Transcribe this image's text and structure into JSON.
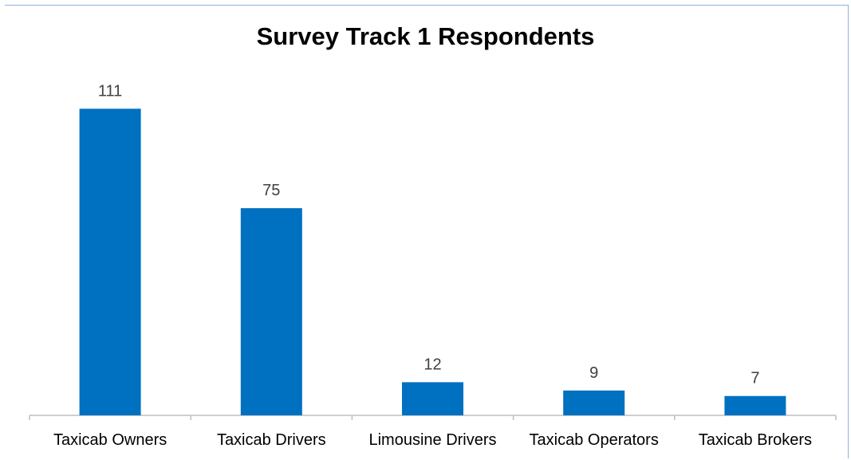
{
  "chart_data": {
    "type": "bar",
    "title": "Survey Track 1 Respondents",
    "categories": [
      "Taxicab Owners",
      "Taxicab Drivers",
      "Limousine Drivers",
      "Taxicab Operators",
      "Taxicab Brokers"
    ],
    "values": [
      111,
      75,
      12,
      9,
      7
    ],
    "xlabel": "",
    "ylabel": "",
    "ylim": [
      0,
      120
    ],
    "grid": false,
    "legend": "none",
    "data_labels": true,
    "bar_color": "#0070c0"
  }
}
